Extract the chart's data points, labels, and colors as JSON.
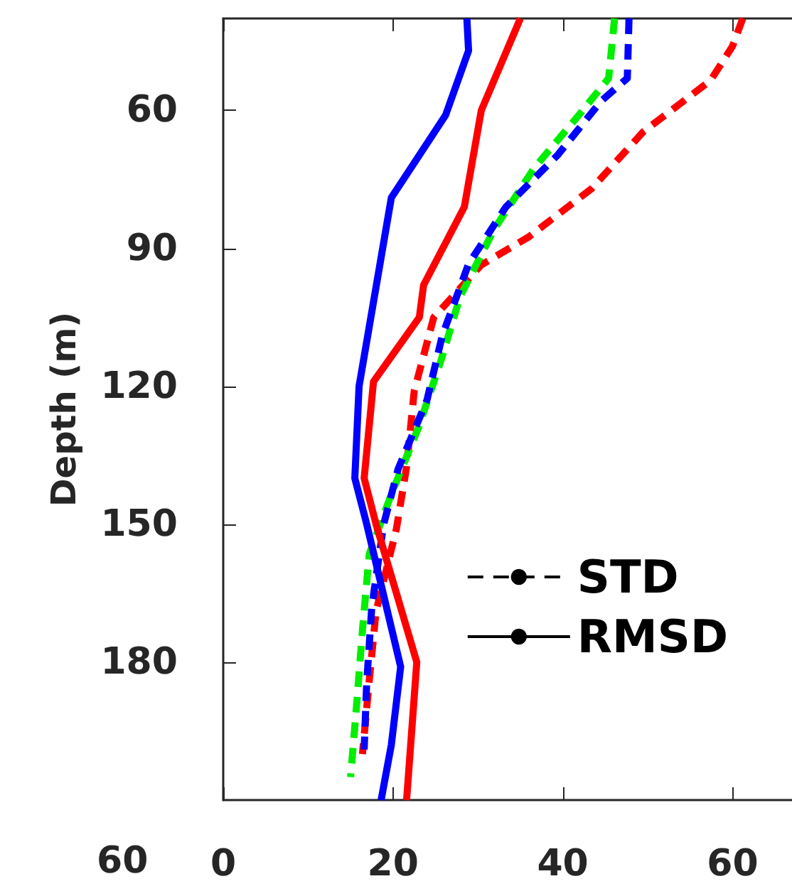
{
  "chart_data": {
    "type": "line",
    "ylabel": "Depth (m)",
    "annotations": [
      "60"
    ],
    "xlim": [
      0,
      67
    ],
    "xticks": [
      0,
      20,
      40,
      60
    ],
    "ylim": [
      210,
      40
    ],
    "yticks": [
      60,
      90,
      120,
      150,
      180
    ],
    "grid": false,
    "legend": "right",
    "marker": "none",
    "series": [
      {
        "color": "#ff0000",
        "line_style": "dashed",
        "x": [
          61.2,
          60,
          57.4,
          49.5,
          43.4,
          36,
          30.4,
          24.8,
          22.5,
          21.6,
          20.4,
          18,
          17.2,
          16.4
        ],
        "values": [
          40,
          46,
          53.5,
          64.6,
          77,
          87.5,
          93.6,
          105,
          121,
          137.5,
          151,
          169,
          184,
          200
        ]
      },
      {
        "color": "#00ee00",
        "line_style": "dashed",
        "x": [
          46.1,
          45.4,
          41.9,
          36.6,
          31.9,
          27.9,
          25.6,
          23,
          19.9,
          17.2,
          16.4,
          15.7,
          15
        ],
        "values": [
          40,
          53,
          61,
          72.6,
          85.9,
          100.5,
          114.7,
          129,
          143,
          156.5,
          173,
          189.6,
          205
        ]
      },
      {
        "color": "#0000ff",
        "line_style": "dashed",
        "x": [
          47.8,
          47.6,
          44.5,
          39.4,
          33.3,
          28.9,
          25.8,
          24,
          20.6,
          18.9,
          17.5,
          16.9,
          16.6
        ],
        "values": [
          40,
          53,
          58,
          69.7,
          81,
          93.4,
          109,
          123,
          138,
          150,
          168,
          184.5,
          199
        ]
      },
      {
        "color": "#ff0000",
        "line_style": "solid",
        "x": [
          35,
          30.4,
          28.4,
          23.6,
          23.1,
          17.7,
          16.6,
          18,
          22.8,
          21.6
        ],
        "values": [
          40,
          60,
          81,
          98,
          105,
          119,
          140,
          150,
          180,
          210
        ]
      },
      {
        "color": "#0000ff",
        "line_style": "solid",
        "x": [
          28.7,
          28.9,
          26.2,
          19.8,
          16,
          15.5,
          16.9,
          20.9,
          19.8,
          18.6
        ],
        "values": [
          40,
          47,
          61,
          79,
          120,
          140,
          150,
          181,
          198,
          210
        ]
      },
      {
        "name": "STD",
        "color": "#000000",
        "line_style": "dashed"
      },
      {
        "name": "RMSD",
        "color": "#000000",
        "line_style": "solid"
      }
    ]
  }
}
